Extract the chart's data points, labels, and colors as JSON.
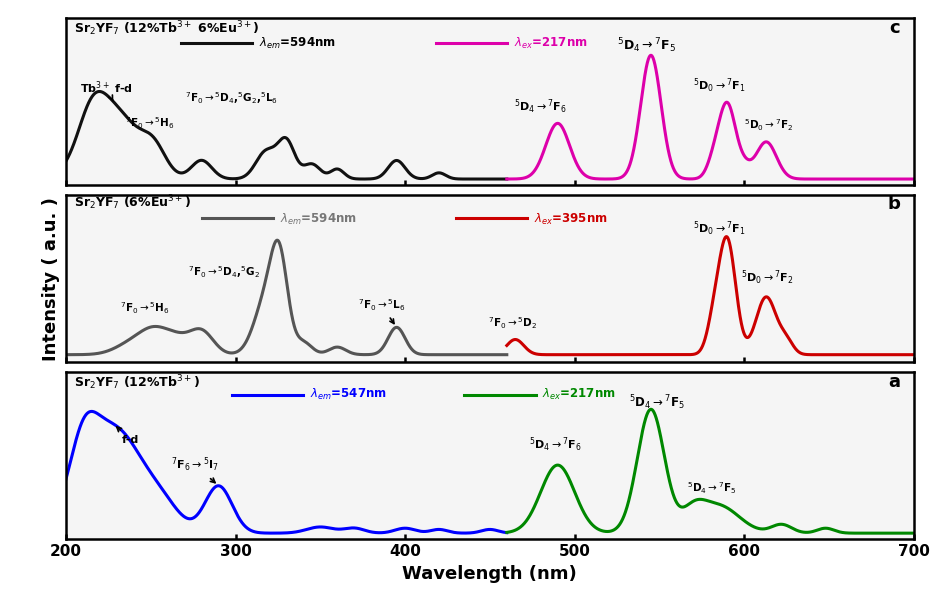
{
  "xlabel": "Wavelength (nm)",
  "ylabel": "Intensity ( a.u. )",
  "xlim": [
    200,
    700
  ],
  "xticks": [
    200,
    300,
    400,
    500,
    600,
    700
  ],
  "background_color": "#f5f5f5",
  "lw": 2.2
}
